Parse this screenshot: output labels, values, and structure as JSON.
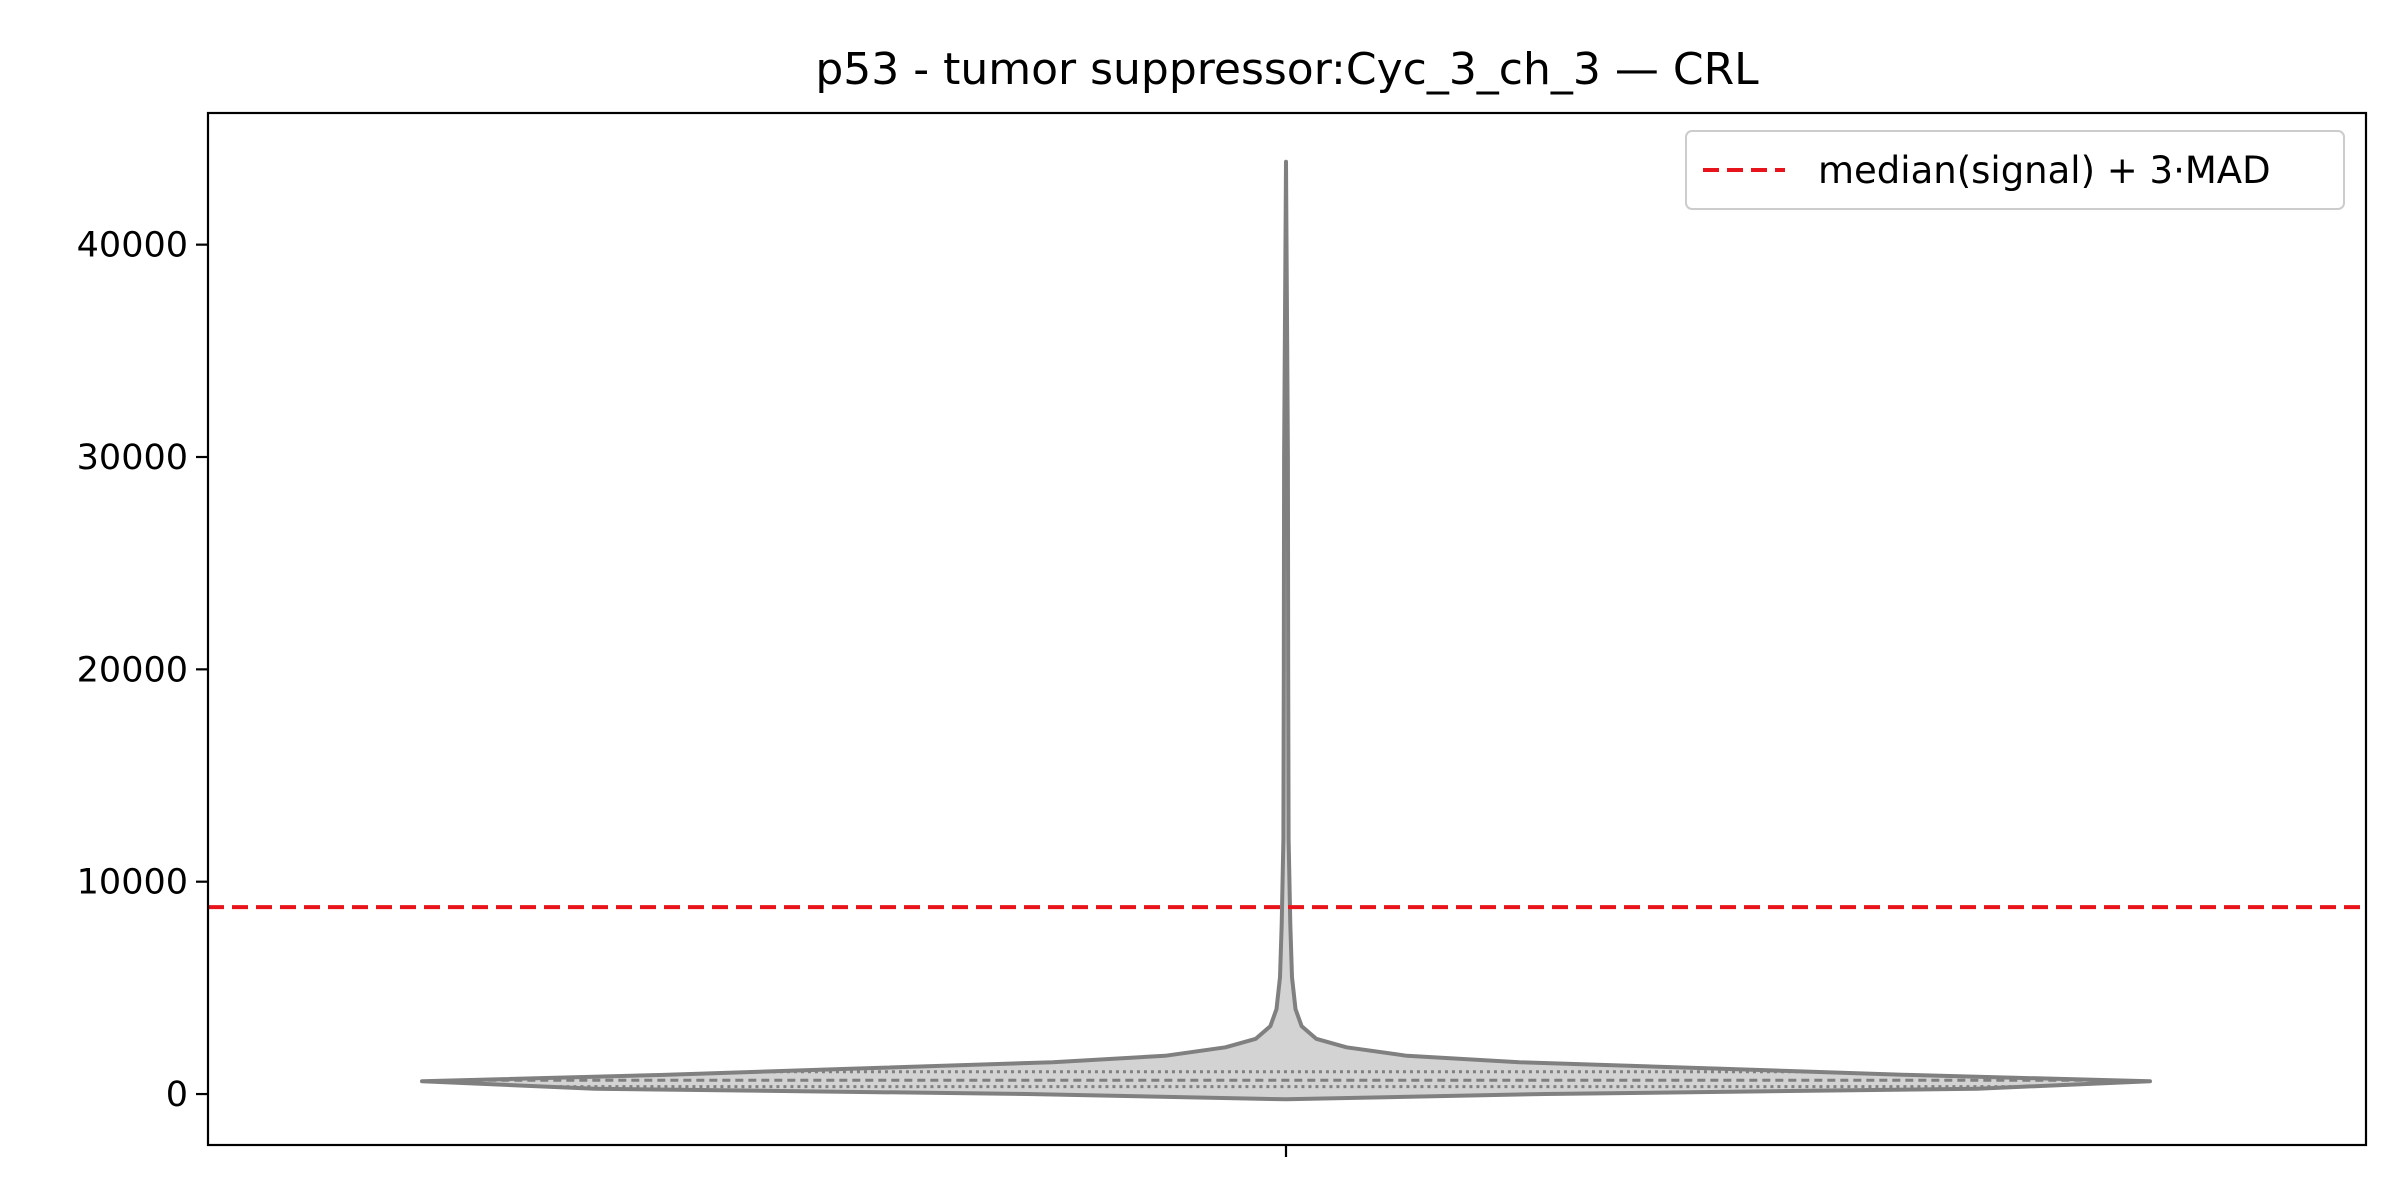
{
  "chart_data": {
    "type": "violin",
    "title": "p53 - tumor suppressor:Cyc_3_ch_3 — CRL",
    "xlabel": "",
    "ylabel": "",
    "ylim": [
      -2400,
      46200
    ],
    "yticks": [
      0,
      10000,
      20000,
      30000,
      40000
    ],
    "ytick_labels": [
      "0",
      "10000",
      "20000",
      "30000",
      "40000"
    ],
    "xticks": [
      ""
    ],
    "grid": false,
    "legend": {
      "placement": "top-right",
      "entries": [
        {
          "label": "median(signal) + 3·MAD",
          "style": "dashed",
          "color": "#e8141b"
        }
      ]
    },
    "threshold": {
      "value": 8800,
      "color": "#e8141b",
      "style": "dashed"
    },
    "violin": {
      "fill_color": "#d3d3d3",
      "edge_color": "#808080",
      "min": -250,
      "max": 43900,
      "quartiles": [
        350,
        650,
        1050
      ],
      "density_profile": [
        {
          "y": -250,
          "w": 0.0
        },
        {
          "y": 0,
          "w": 0.3
        },
        {
          "y": 250,
          "w": 0.8
        },
        {
          "y": 600,
          "w": 1.0
        },
        {
          "y": 900,
          "w": 0.72
        },
        {
          "y": 1200,
          "w": 0.5
        },
        {
          "y": 1500,
          "w": 0.27
        },
        {
          "y": 1800,
          "w": 0.14
        },
        {
          "y": 2200,
          "w": 0.07
        },
        {
          "y": 2600,
          "w": 0.035
        },
        {
          "y": 3200,
          "w": 0.018
        },
        {
          "y": 4000,
          "w": 0.011
        },
        {
          "y": 5500,
          "w": 0.007
        },
        {
          "y": 8000,
          "w": 0.005
        },
        {
          "y": 12000,
          "w": 0.003
        },
        {
          "y": 20000,
          "w": 0.0025
        },
        {
          "y": 30000,
          "w": 0.0022
        },
        {
          "y": 43900,
          "w": 0.0
        }
      ]
    }
  }
}
